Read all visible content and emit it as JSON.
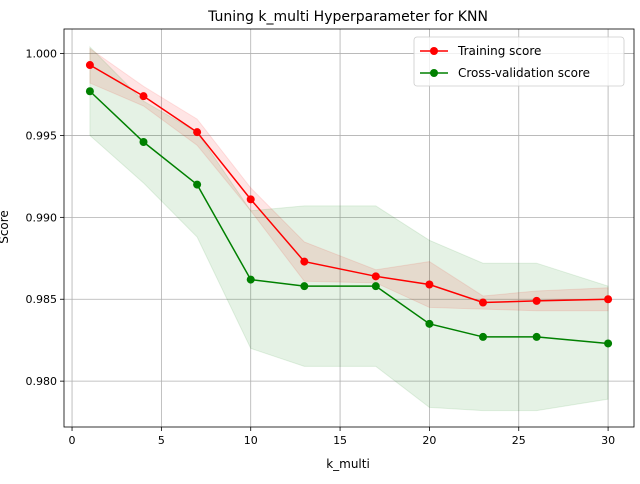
{
  "chart_data": {
    "type": "line",
    "title": "Tuning k_multi Hyperparameter for KNN",
    "xlabel": "k_multi",
    "ylabel": "Score",
    "xlim": [
      -0.45,
      31.45
    ],
    "ylim": [
      0.9772,
      1.0015
    ],
    "xticks": [
      0,
      5,
      10,
      15,
      20,
      25,
      30
    ],
    "xtick_labels": [
      "0",
      "5",
      "10",
      "15",
      "20",
      "25",
      "30"
    ],
    "yticks": [
      0.98,
      0.985,
      0.99,
      0.995,
      1.0
    ],
    "ytick_labels": [
      "0.980",
      "0.985",
      "0.990",
      "0.995",
      "1.000"
    ],
    "grid": true,
    "legend_position": "top-right",
    "x": [
      1,
      4,
      7,
      10,
      13,
      17,
      20,
      23,
      26,
      30
    ],
    "series": [
      {
        "name": "Training score",
        "color": "#ff0000",
        "fill_color": "#ff0000",
        "fill_opacity": 0.1,
        "values": [
          0.9993,
          0.9974,
          0.9952,
          0.9911,
          0.9873,
          0.9864,
          0.9859,
          0.9848,
          0.9849,
          0.985
        ],
        "lower": [
          0.9982,
          0.9968,
          0.9944,
          0.9904,
          0.9861,
          0.986,
          0.9845,
          0.9844,
          0.9843,
          0.9843
        ],
        "upper": [
          1.0003,
          0.998,
          0.996,
          0.9918,
          0.9885,
          0.9868,
          0.9873,
          0.9852,
          0.9855,
          0.9857
        ]
      },
      {
        "name": "Cross-validation score",
        "color": "#008000",
        "fill_color": "#008000",
        "fill_opacity": 0.1,
        "values": [
          0.9977,
          0.9946,
          0.992,
          0.9862,
          0.9858,
          0.9858,
          0.9835,
          0.9827,
          0.9827,
          0.9823
        ],
        "lower": [
          0.995,
          0.9921,
          0.9888,
          0.982,
          0.9809,
          0.9809,
          0.9784,
          0.9782,
          0.9782,
          0.9789
        ],
        "upper": [
          1.0004,
          0.9971,
          0.9952,
          0.9904,
          0.9907,
          0.9907,
          0.9886,
          0.9872,
          0.9872,
          0.9858
        ]
      }
    ]
  }
}
